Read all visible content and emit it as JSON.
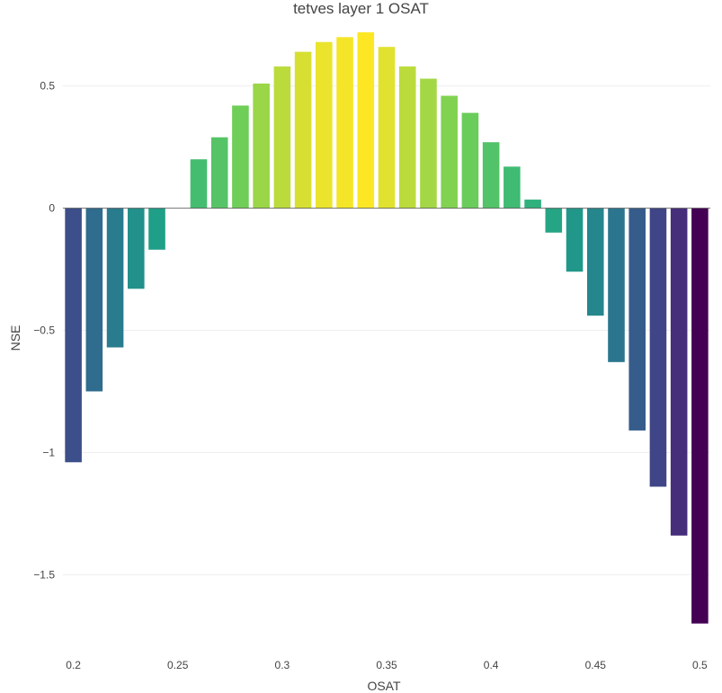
{
  "chart_data": {
    "type": "bar",
    "title": "tetves layer 1 OSAT",
    "xlabel": "OSAT",
    "ylabel": "NSE",
    "x": [
      0.2,
      0.21,
      0.22,
      0.23,
      0.24,
      0.25,
      0.26,
      0.27,
      0.28,
      0.29,
      0.3,
      0.31,
      0.32,
      0.33,
      0.34,
      0.35,
      0.36,
      0.37,
      0.38,
      0.39,
      0.4,
      0.41,
      0.42,
      0.43,
      0.44,
      0.45,
      0.46,
      0.47,
      0.48,
      0.49,
      0.5
    ],
    "values": [
      -1.04,
      -0.75,
      -0.57,
      -0.33,
      -0.17,
      0.0,
      0.2,
      0.29,
      0.42,
      0.51,
      0.58,
      0.64,
      0.68,
      0.7,
      0.72,
      0.66,
      0.58,
      0.53,
      0.46,
      0.39,
      0.27,
      0.17,
      0.035,
      -0.1,
      -0.26,
      -0.44,
      -0.63,
      -0.91,
      -1.14,
      -1.34,
      -1.7
    ],
    "xticks": [
      "0.2",
      "0.25",
      "0.3",
      "0.35",
      "0.4",
      "0.45",
      "0.5"
    ],
    "xtick_values": [
      0.2,
      0.25,
      0.3,
      0.35,
      0.4,
      0.45,
      0.5
    ],
    "yticks": [
      "0.5",
      "0",
      "−0.5",
      "−1",
      "−1.5"
    ],
    "ytick_values": [
      0.5,
      0,
      -0.5,
      -1,
      -1.5
    ],
    "xlim": [
      0.195,
      0.505
    ],
    "ylim": [
      -1.76,
      0.76
    ],
    "grid": true,
    "colorscale": "viridis",
    "colors": {
      "gridline": "#eeeeee",
      "zeroline": "#444444",
      "text": "#444444"
    }
  }
}
